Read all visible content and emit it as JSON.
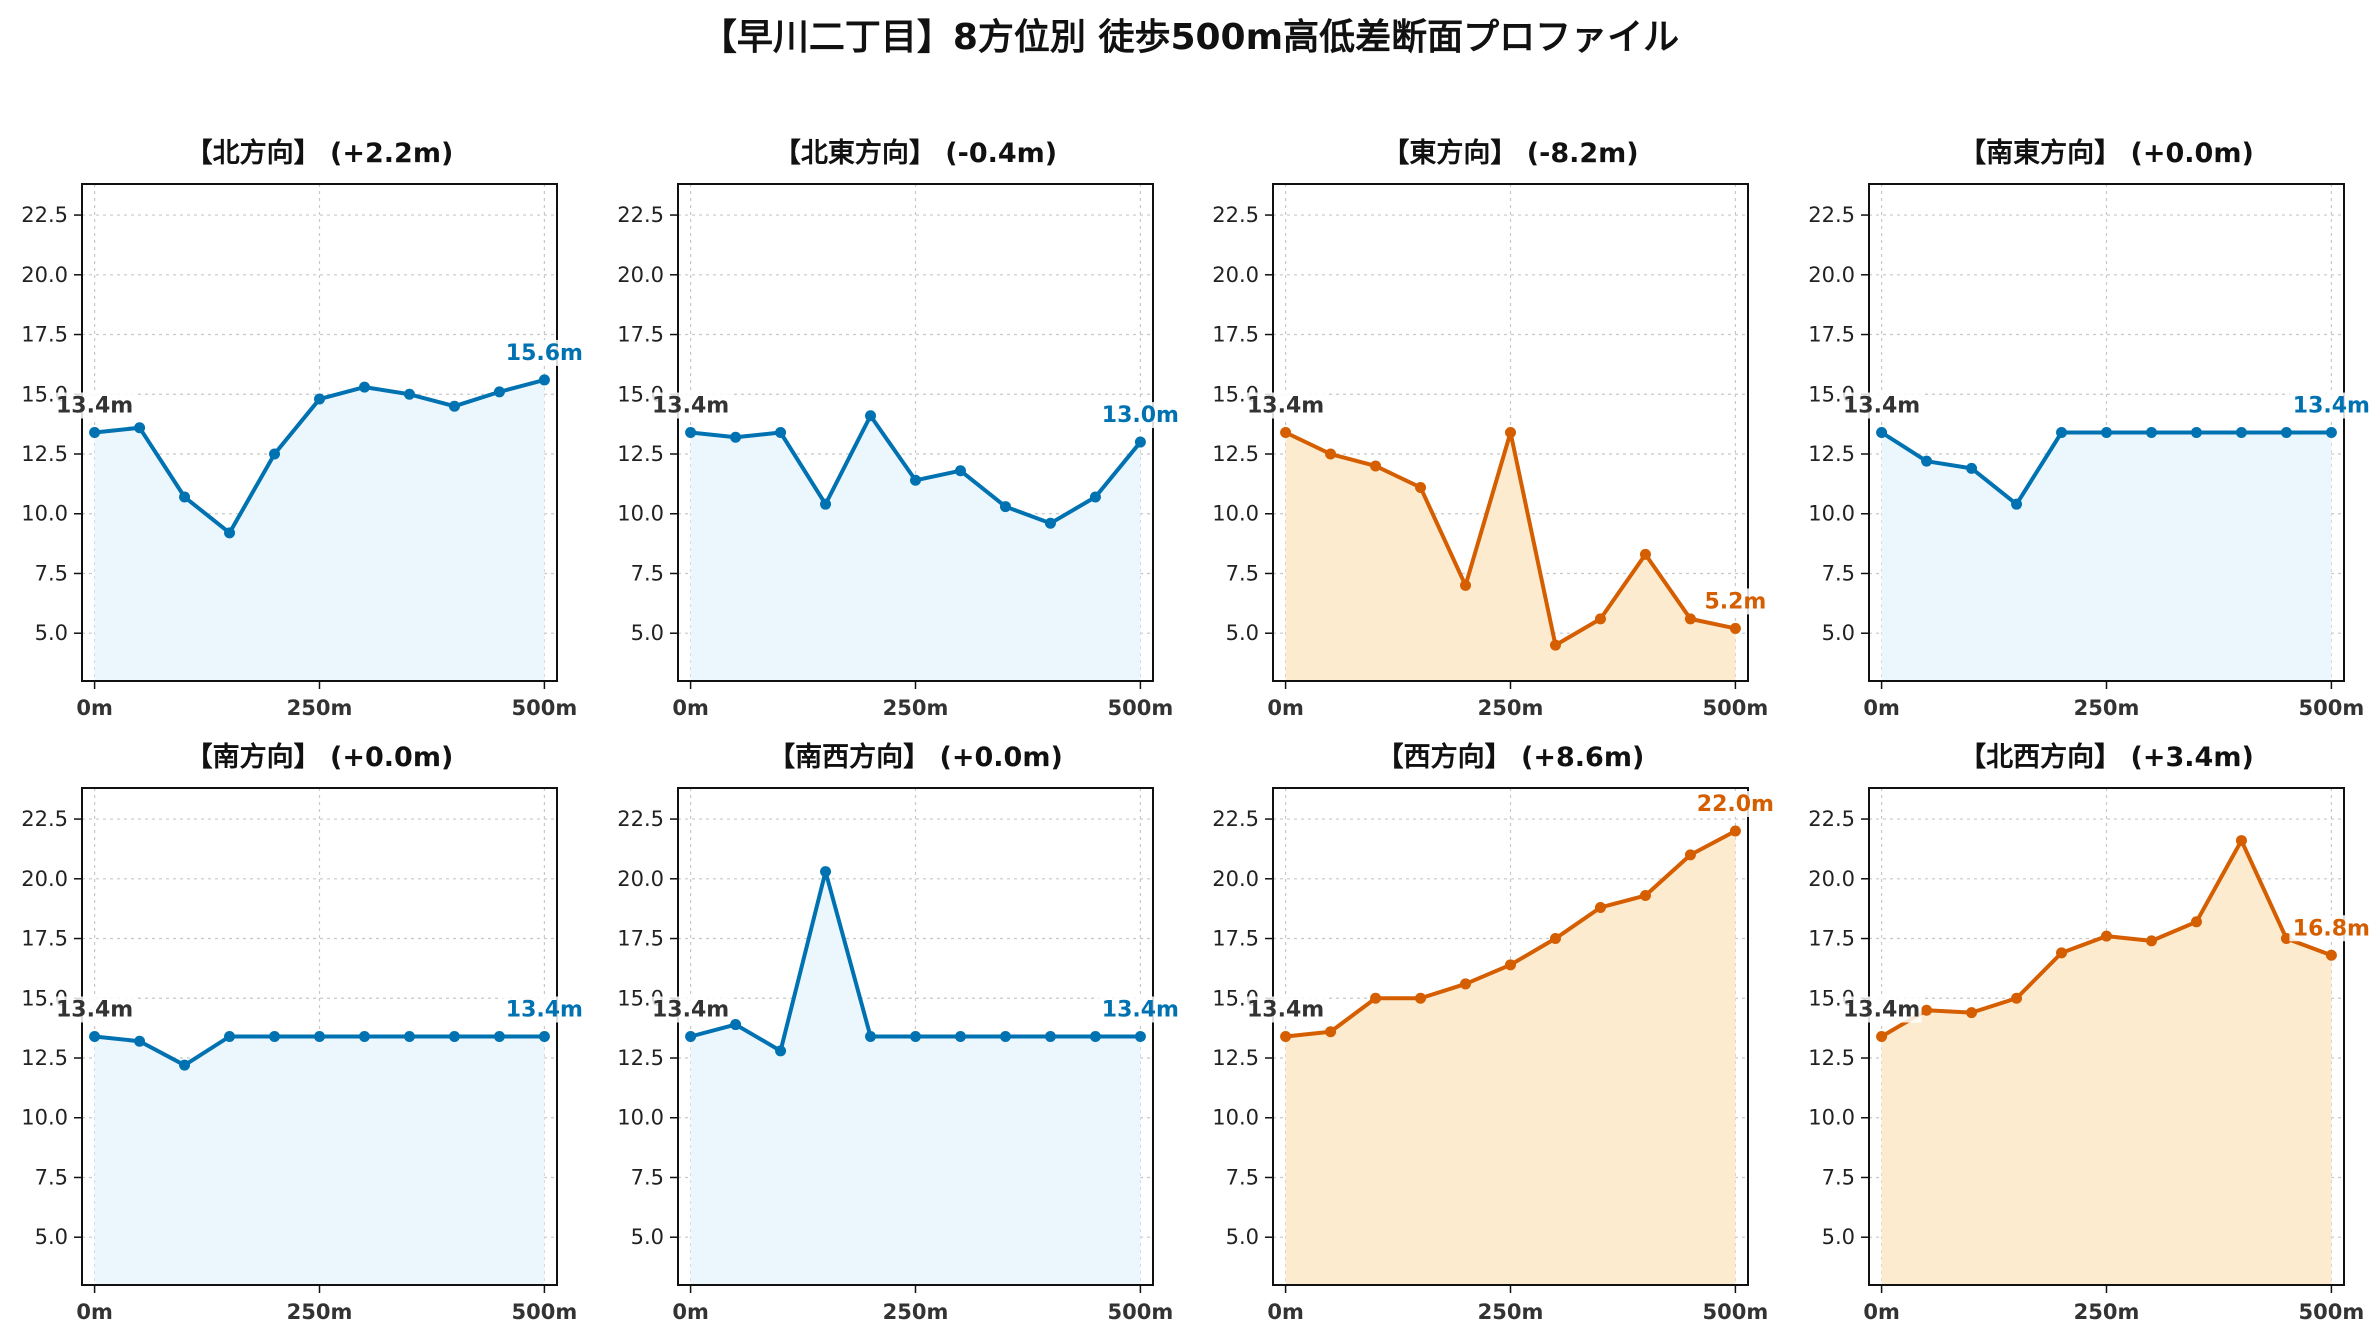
{
  "title": "【早川二丁目】8方位別 徒歩500m高低差断面プロファイル",
  "colors": {
    "up": "#0072B2",
    "down": "#D55E00",
    "up_fill": "#EBF7FC",
    "down_fill": "#FDEBD0",
    "start_label": "#333333"
  },
  "chart_data": [
    {
      "type": "area",
      "title": "【北方向】 (+2.2m)",
      "x": [
        0,
        50,
        100,
        150,
        200,
        250,
        300,
        350,
        400,
        450,
        500
      ],
      "values": [
        13.4,
        13.6,
        10.7,
        9.2,
        12.5,
        14.8,
        15.3,
        15.0,
        14.5,
        15.1,
        15.6
      ],
      "color_key": "up",
      "start_label": "13.4m",
      "end_label": "15.6m",
      "xticks": [
        "0m",
        "250m",
        "500m"
      ],
      "ylim": [
        3.0,
        23.8
      ],
      "yticks": [
        "5.0",
        "7.5",
        "10.0",
        "12.5",
        "15.0",
        "17.5",
        "20.0",
        "22.5"
      ],
      "grid": true
    },
    {
      "type": "area",
      "title": "【北東方向】 (-0.4m)",
      "x": [
        0,
        50,
        100,
        150,
        200,
        250,
        300,
        350,
        400,
        450,
        500
      ],
      "values": [
        13.4,
        13.2,
        13.4,
        10.4,
        14.1,
        11.4,
        11.8,
        10.3,
        9.6,
        10.7,
        13.0
      ],
      "color_key": "up",
      "start_label": "13.4m",
      "end_label": "13.0m",
      "xticks": [
        "0m",
        "250m",
        "500m"
      ],
      "ylim": [
        3.0,
        23.8
      ],
      "yticks": [
        "5.0",
        "7.5",
        "10.0",
        "12.5",
        "15.0",
        "17.5",
        "20.0",
        "22.5"
      ],
      "grid": true
    },
    {
      "type": "area",
      "title": "【東方向】 (-8.2m)",
      "x": [
        0,
        50,
        100,
        150,
        200,
        250,
        300,
        350,
        400,
        450,
        500
      ],
      "values": [
        13.4,
        12.5,
        12.0,
        11.1,
        7.0,
        13.4,
        4.5,
        5.6,
        8.3,
        5.6,
        5.2
      ],
      "color_key": "down",
      "start_label": "13.4m",
      "end_label": "5.2m",
      "xticks": [
        "0m",
        "250m",
        "500m"
      ],
      "ylim": [
        3.0,
        23.8
      ],
      "yticks": [
        "5.0",
        "7.5",
        "10.0",
        "12.5",
        "15.0",
        "17.5",
        "20.0",
        "22.5"
      ],
      "grid": true
    },
    {
      "type": "area",
      "title": "【南東方向】 (+0.0m)",
      "x": [
        0,
        50,
        100,
        150,
        200,
        250,
        300,
        350,
        400,
        450,
        500
      ],
      "values": [
        13.4,
        12.2,
        11.9,
        10.4,
        13.4,
        13.4,
        13.4,
        13.4,
        13.4,
        13.4,
        13.4
      ],
      "color_key": "up",
      "start_label": "13.4m",
      "end_label": "13.4m",
      "xticks": [
        "0m",
        "250m",
        "500m"
      ],
      "ylim": [
        3.0,
        23.8
      ],
      "yticks": [
        "5.0",
        "7.5",
        "10.0",
        "12.5",
        "15.0",
        "17.5",
        "20.0",
        "22.5"
      ],
      "grid": true
    },
    {
      "type": "area",
      "title": "【南方向】 (+0.0m)",
      "x": [
        0,
        50,
        100,
        150,
        200,
        250,
        300,
        350,
        400,
        450,
        500
      ],
      "values": [
        13.4,
        13.2,
        12.2,
        13.4,
        13.4,
        13.4,
        13.4,
        13.4,
        13.4,
        13.4,
        13.4
      ],
      "color_key": "up",
      "start_label": "13.4m",
      "end_label": "13.4m",
      "xticks": [
        "0m",
        "250m",
        "500m"
      ],
      "ylim": [
        3.0,
        23.8
      ],
      "yticks": [
        "5.0",
        "7.5",
        "10.0",
        "12.5",
        "15.0",
        "17.5",
        "20.0",
        "22.5"
      ],
      "grid": true
    },
    {
      "type": "area",
      "title": "【南西方向】 (+0.0m)",
      "x": [
        0,
        50,
        100,
        150,
        200,
        250,
        300,
        350,
        400,
        450,
        500
      ],
      "values": [
        13.4,
        13.9,
        12.8,
        20.3,
        13.4,
        13.4,
        13.4,
        13.4,
        13.4,
        13.4,
        13.4
      ],
      "color_key": "up",
      "start_label": "13.4m",
      "end_label": "13.4m",
      "xticks": [
        "0m",
        "250m",
        "500m"
      ],
      "ylim": [
        3.0,
        23.8
      ],
      "yticks": [
        "5.0",
        "7.5",
        "10.0",
        "12.5",
        "15.0",
        "17.5",
        "20.0",
        "22.5"
      ],
      "grid": true
    },
    {
      "type": "area",
      "title": "【西方向】 (+8.6m)",
      "x": [
        0,
        50,
        100,
        150,
        200,
        250,
        300,
        350,
        400,
        450,
        500
      ],
      "values": [
        13.4,
        13.6,
        15.0,
        15.0,
        15.6,
        16.4,
        17.5,
        18.8,
        19.3,
        21.0,
        22.0
      ],
      "color_key": "down",
      "start_label": "13.4m",
      "end_label": "22.0m",
      "xticks": [
        "0m",
        "250m",
        "500m"
      ],
      "ylim": [
        3.0,
        23.8
      ],
      "yticks": [
        "5.0",
        "7.5",
        "10.0",
        "12.5",
        "15.0",
        "17.5",
        "20.0",
        "22.5"
      ],
      "grid": true
    },
    {
      "type": "area",
      "title": "【北西方向】 (+3.4m)",
      "x": [
        0,
        50,
        100,
        150,
        200,
        250,
        300,
        350,
        400,
        450,
        500
      ],
      "values": [
        13.4,
        14.5,
        14.4,
        15.0,
        16.9,
        17.6,
        17.4,
        18.2,
        21.6,
        17.5,
        16.8
      ],
      "color_key": "down",
      "start_label": "13.4m",
      "end_label": "16.8m",
      "xticks": [
        "0m",
        "250m",
        "500m"
      ],
      "ylim": [
        3.0,
        23.8
      ],
      "yticks": [
        "5.0",
        "7.5",
        "10.0",
        "12.5",
        "15.0",
        "17.5",
        "20.0",
        "22.5"
      ],
      "grid": true
    }
  ]
}
